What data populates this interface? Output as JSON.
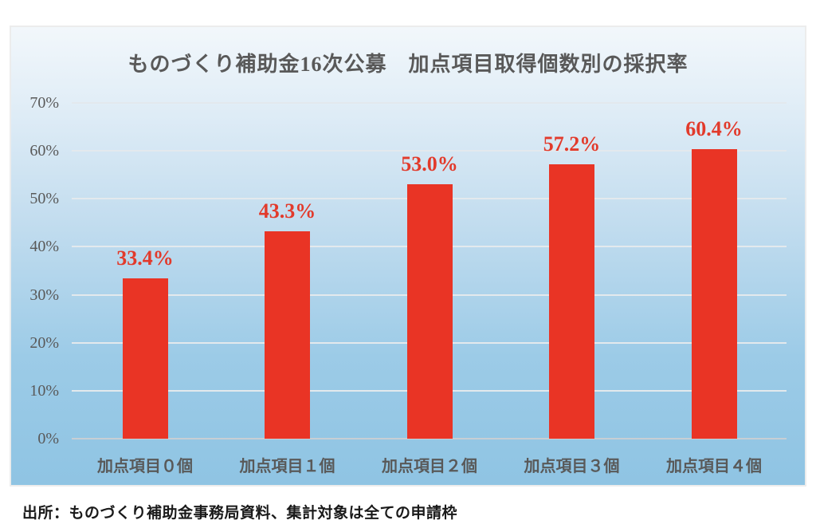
{
  "chart_data": {
    "type": "bar",
    "title": "ものづくり補助金16次公募　加点項目取得個数別の採択率",
    "categories": [
      "加点項目０個",
      "加点項目１個",
      "加点項目２個",
      "加点項目３個",
      "加点項目４個"
    ],
    "values": [
      33.4,
      43.3,
      53.0,
      57.2,
      60.4
    ],
    "value_labels": [
      "33.4%",
      "43.3%",
      "53.0%",
      "57.2%",
      "60.4%"
    ],
    "xlabel": "",
    "ylabel": "",
    "ylim": [
      0,
      70
    ],
    "y_ticks": [
      "0%",
      "10%",
      "20%",
      "30%",
      "40%",
      "50%",
      "60%",
      "70%"
    ],
    "y_tick_values": [
      0,
      10,
      20,
      30,
      40,
      50,
      60,
      70
    ],
    "grid": "horizontal",
    "legend": "none",
    "colors": {
      "bar": "#e93425",
      "value_label": "#e23a2b",
      "axis_text": "#595959",
      "title_text": "#595959",
      "gridline": "#e3e9ed",
      "baseline": "#c7ced4",
      "panel_gradient_top": "#f2f7fb",
      "panel_gradient_bottom": "#8fc4e3"
    }
  },
  "source_note": "出所：ものづくり補助金事務局資料、集計対象は全ての申請枠"
}
